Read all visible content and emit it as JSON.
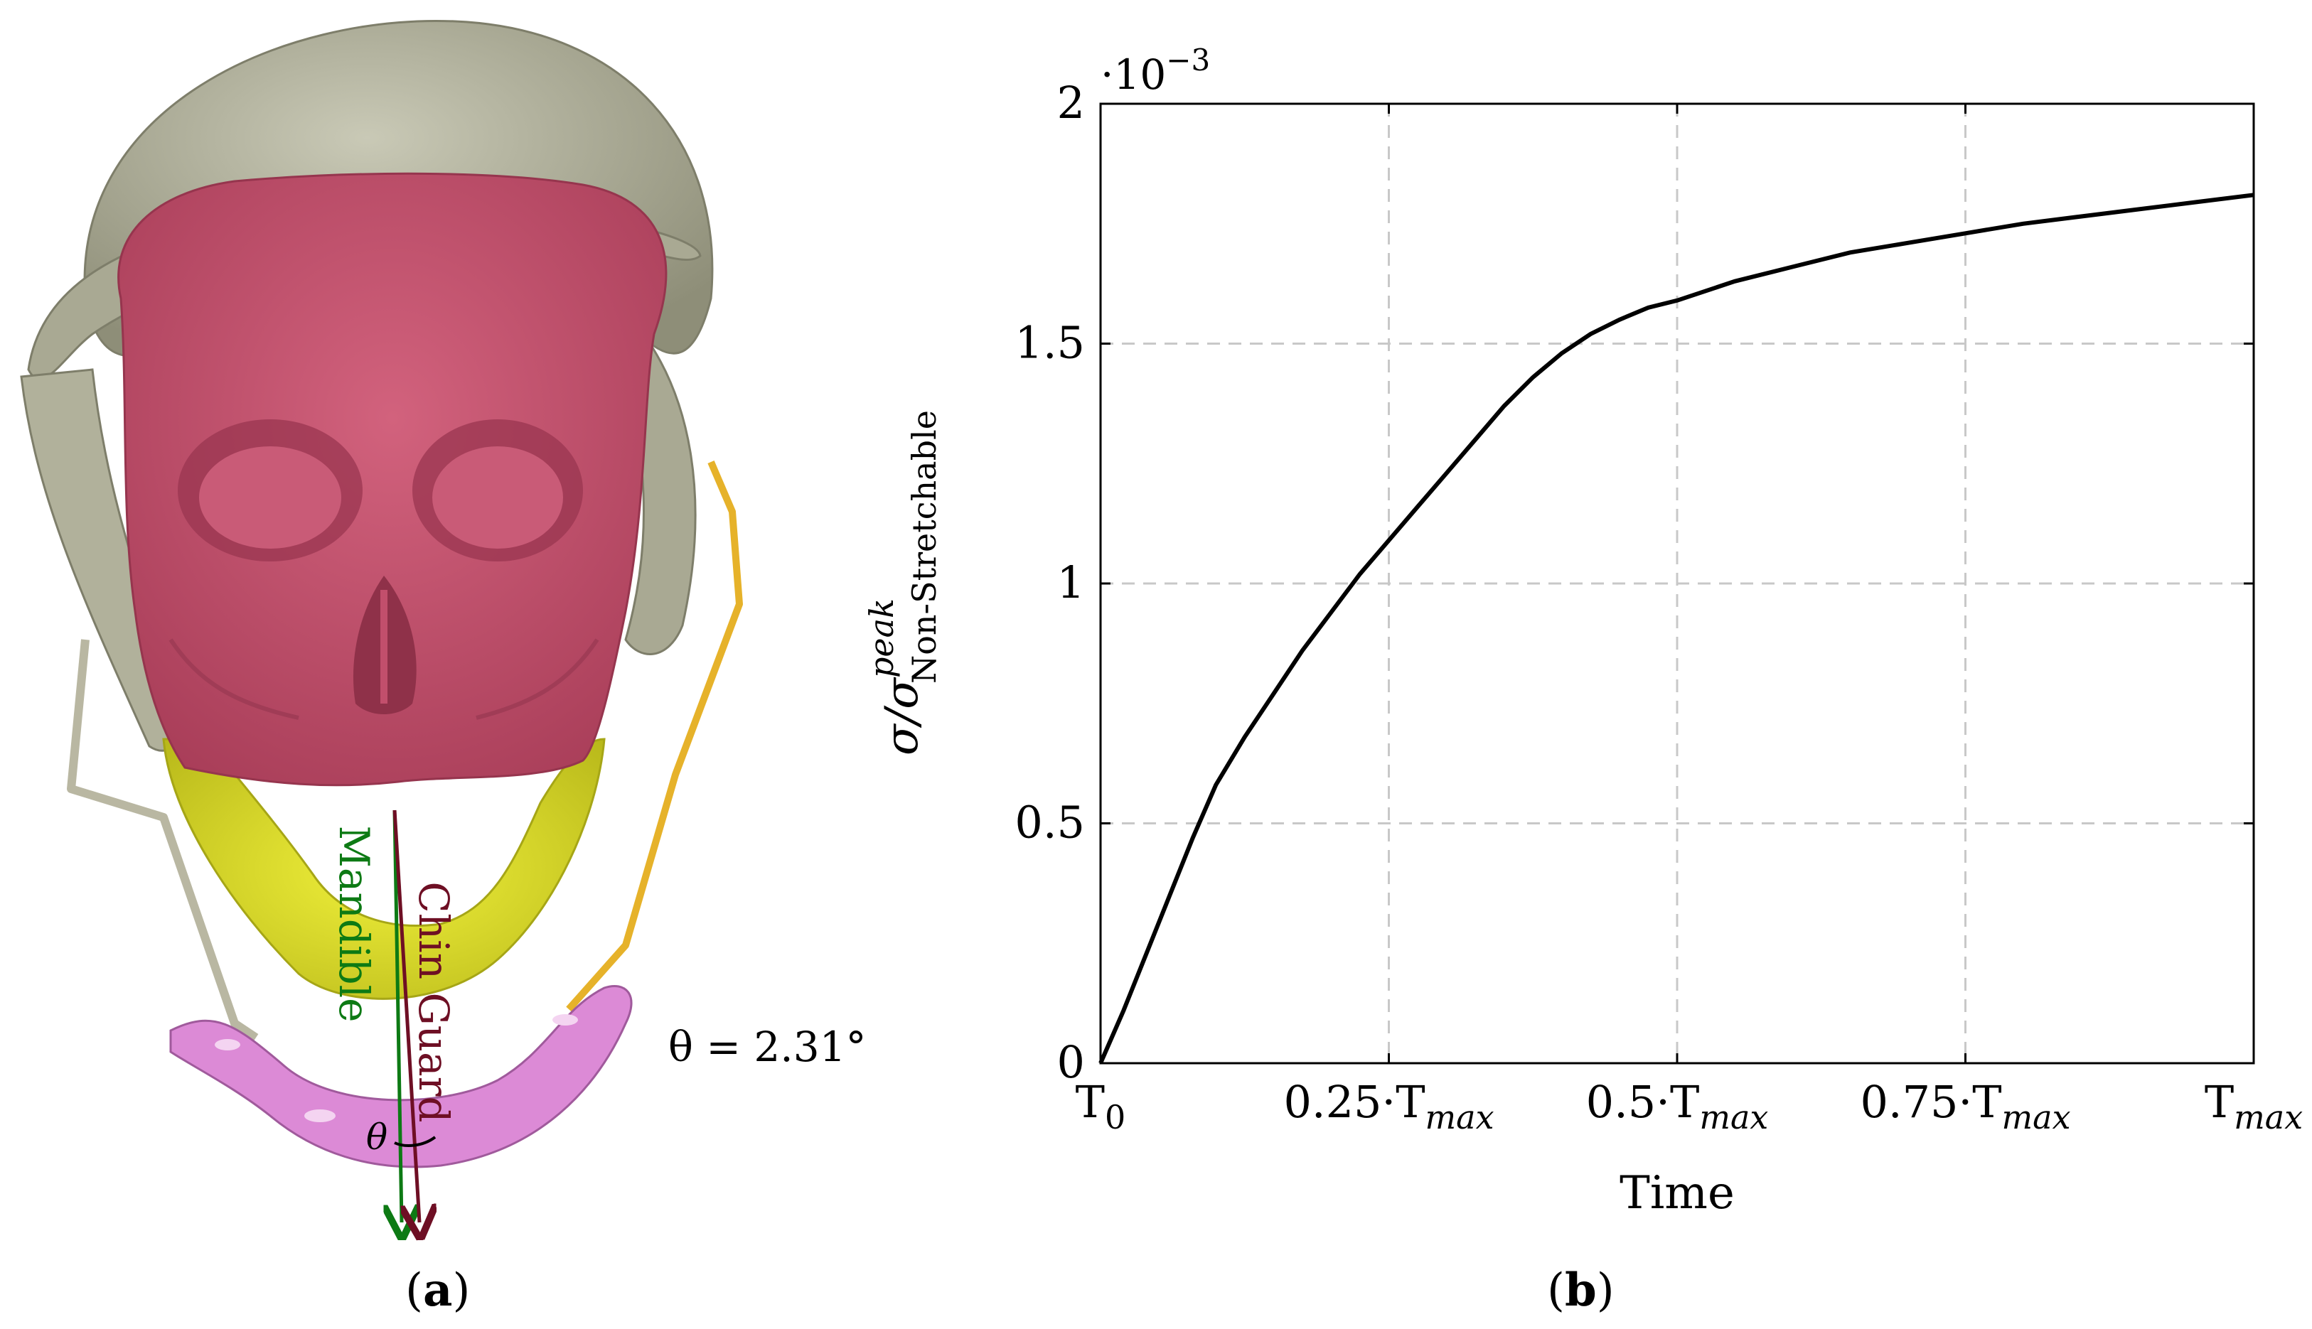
{
  "panel_a": {
    "label": "a",
    "annotation_theta_equation": "θ = 2.31°",
    "angle_symbol": "θ",
    "arrow_mandible_label": "Mandible",
    "arrow_chinguard_label": "Chin Guard",
    "colors": {
      "helmet": "#b4b49e",
      "skull": "#c24f6c",
      "mandible": "#e2e22a",
      "chin_guard": "#dc8ad6",
      "strap_left": "#b9b7a2",
      "strap_right": "#e6b22a",
      "mandible_arrow": "#0d7a14",
      "chinguard_arrow": "#6e0f24"
    }
  },
  "panel_b": {
    "label": "b",
    "chart_data": {
      "type": "line",
      "xlabel": "Time",
      "ylabel_main": "σ/σ",
      "ylabel_sup": "peak",
      "ylabel_sub": "Non-Stretchable",
      "y_multiplier": "·10",
      "y_multiplier_exp": "−3",
      "x_ticks": [
        {
          "value": 0,
          "base": "T",
          "sub": "0"
        },
        {
          "value": 0.25,
          "base": "0.25·T",
          "sub": "max"
        },
        {
          "value": 0.5,
          "base": "0.5·T",
          "sub": "max"
        },
        {
          "value": 0.75,
          "base": "0.75·T",
          "sub": "max"
        },
        {
          "value": 1.0,
          "base": "T",
          "sub": "max"
        }
      ],
      "y_ticks": [
        "0",
        "0.5",
        "1",
        "1.5",
        "2"
      ],
      "y_tick_values": [
        0,
        0.5,
        1,
        1.5,
        2
      ],
      "xlim": [
        0,
        1
      ],
      "ylim": [
        0,
        2
      ],
      "grid": "dashed",
      "series": [
        {
          "color": "#000000",
          "x": [
            0,
            0.02,
            0.04,
            0.06,
            0.08,
            0.1,
            0.125,
            0.15,
            0.175,
            0.2,
            0.225,
            0.25,
            0.275,
            0.3,
            0.325,
            0.35,
            0.375,
            0.4,
            0.425,
            0.45,
            0.475,
            0.5,
            0.55,
            0.6,
            0.65,
            0.7,
            0.75,
            0.8,
            0.85,
            0.9,
            0.95,
            1.0
          ],
          "y": [
            0,
            0.11,
            0.23,
            0.35,
            0.47,
            0.58,
            0.68,
            0.77,
            0.86,
            0.94,
            1.02,
            1.09,
            1.16,
            1.23,
            1.3,
            1.37,
            1.43,
            1.48,
            1.52,
            1.55,
            1.575,
            1.59,
            1.63,
            1.66,
            1.69,
            1.71,
            1.73,
            1.75,
            1.765,
            1.78,
            1.795,
            1.81
          ]
        }
      ]
    }
  }
}
